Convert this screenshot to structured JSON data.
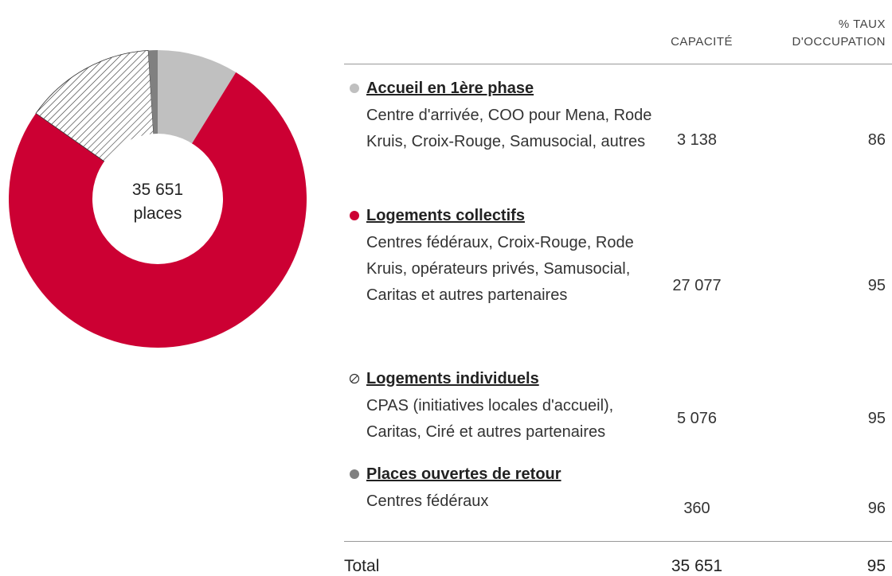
{
  "chart_data": {
    "type": "donut",
    "categories": [
      "Accueil en 1ère phase",
      "Logements collectifs",
      "Logements individuels",
      "Places ouvertes de retour"
    ],
    "descriptions": [
      "Centre d'arrivée, COO pour Mena, Rode Kruis, Croix-Rouge, Samusocial, autres",
      "Centres fédéraux, Croix-Rouge, Rode Kruis, opérateurs privés, Samusocial, Caritas et autres partenaires",
      "CPAS (initiatives locales d'accueil), Caritas, Ciré et autres partenaires",
      "Centres fédéraux"
    ],
    "values": [
      3138,
      27077,
      5076,
      360
    ],
    "value_labels": [
      "3 138",
      "27 077",
      "5 076",
      "360"
    ],
    "occupancy": [
      86,
      95,
      95,
      96
    ],
    "colors": [
      "#c0c0c0",
      "#cc0033",
      "#ffffff",
      "#808080"
    ],
    "hatched": [
      false,
      false,
      true,
      false
    ],
    "center_label": "35 651",
    "center_sublabel": "places"
  },
  "table": {
    "headers": [
      "CAPACITÉ",
      "% TAUX D'OCCUPATION"
    ],
    "total": {
      "label": "Total",
      "capacity": "35 651",
      "occupancy": 95
    }
  }
}
